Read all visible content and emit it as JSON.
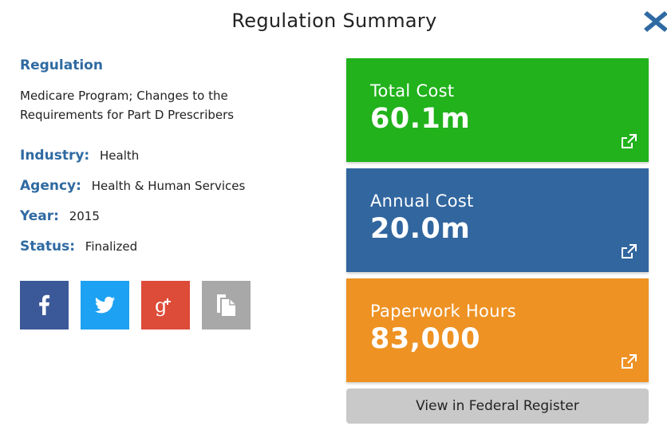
{
  "modal": {
    "title": "Regulation Summary",
    "close_icon": "close-icon"
  },
  "regulation": {
    "heading": "Regulation",
    "name": "Medicare Program; Changes to the Requirements for Part D Prescribers"
  },
  "meta": {
    "industry_label": "Industry:",
    "industry_value": "Health",
    "agency_label": "Agency:",
    "agency_value": "Health & Human Services",
    "year_label": "Year:",
    "year_value": "2015",
    "status_label": "Status:",
    "status_value": "Finalized"
  },
  "share": [
    {
      "icon": "facebook-icon",
      "color": "#3b5998"
    },
    {
      "icon": "twitter-icon",
      "color": "#1da1f2"
    },
    {
      "icon": "google-plus-icon",
      "color": "#dd4b39"
    },
    {
      "icon": "copy-icon",
      "color": "#a8a8a8"
    }
  ],
  "cards": {
    "total_cost": {
      "label": "Total Cost",
      "value": "60.1m",
      "color": "#21b21c",
      "icon": "external-link-icon"
    },
    "annual_cost": {
      "label": "Annual Cost",
      "value": "20.0m",
      "color": "#31669f",
      "icon": "external-link-icon"
    },
    "paperwork_hours": {
      "label": "Paperwork Hours",
      "value": "83,000",
      "color": "#ee9224",
      "icon": "external-link-icon"
    }
  },
  "register_button": {
    "label": "View in Federal Register"
  },
  "colors": {
    "heading_blue": "#2f6aa2",
    "button_gray": "#c9c9c9"
  }
}
